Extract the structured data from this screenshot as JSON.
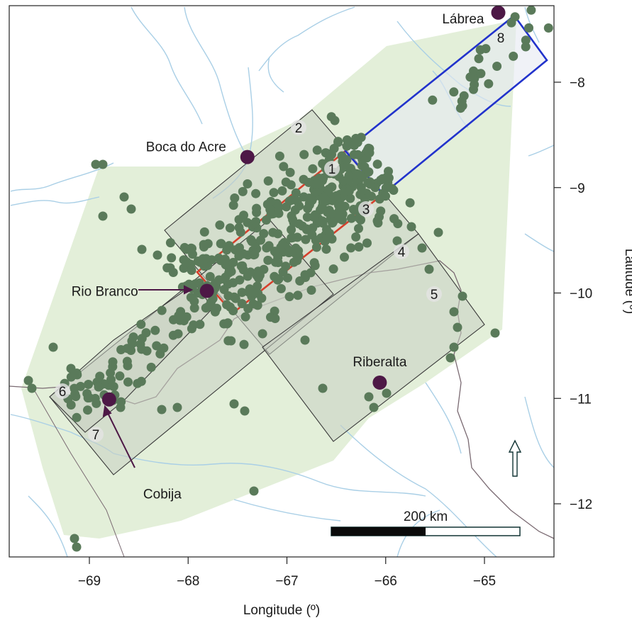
{
  "colors": {
    "convex_hull": "#e3efd9",
    "zone_fill": "#c9d0c2",
    "zone_stroke": "#3a3a3a",
    "highlight_red": "#d6402c",
    "highlight_blue": "#2233cc",
    "points": "#5a7a5a",
    "towns": "#4d1846",
    "rivers": "#a9cfe6",
    "border": "#7a6a72"
  },
  "axes": {
    "x_title": "Longitude (º)",
    "y_title": "Latitude (º)",
    "x_ticks": [
      {
        "value": -69,
        "label": "−69"
      },
      {
        "value": -68,
        "label": "−68"
      },
      {
        "value": -67,
        "label": "−67"
      },
      {
        "value": -66,
        "label": "−66"
      },
      {
        "value": -65,
        "label": "−65"
      }
    ],
    "y_ticks": [
      {
        "value": -8,
        "label": "−8"
      },
      {
        "value": -9,
        "label": "−9"
      },
      {
        "value": -10,
        "label": "−10"
      },
      {
        "value": -11,
        "label": "−11"
      },
      {
        "value": -12,
        "label": "−12"
      }
    ]
  },
  "towns": [
    {
      "name": "Lábrea",
      "lon": -64.86,
      "lat": -7.34
    },
    {
      "name": "Boca do Acre",
      "lon": -67.4,
      "lat": -8.71
    },
    {
      "name": "Rio Branco",
      "lon": -67.81,
      "lat": -9.98
    },
    {
      "name": "Riberalta",
      "lon": -66.06,
      "lat": -10.85
    },
    {
      "name": "Cobija",
      "lon": -68.8,
      "lat": -11.01
    }
  ],
  "zones": [
    {
      "label": "1"
    },
    {
      "label": "2"
    },
    {
      "label": "3"
    },
    {
      "label": "4"
    },
    {
      "label": "5"
    },
    {
      "label": "6"
    },
    {
      "label": "7"
    },
    {
      "label": "8"
    }
  ],
  "scale_bar": {
    "label": "200 km"
  },
  "north_arrow": {
    "icon": "north-arrow-icon"
  }
}
